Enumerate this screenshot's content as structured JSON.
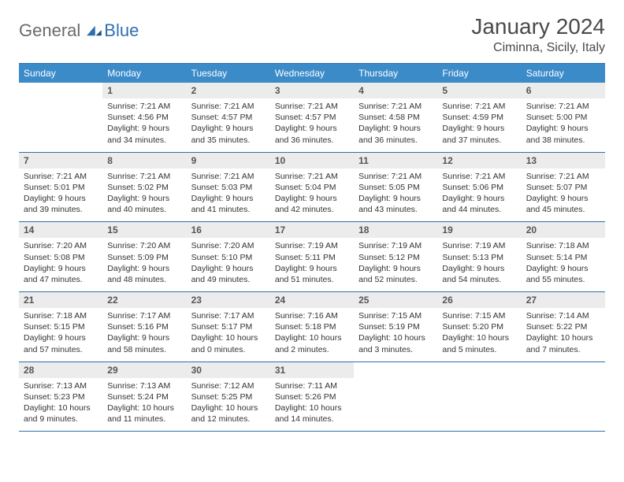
{
  "logo": {
    "text1": "General",
    "text2": "Blue"
  },
  "title": "January 2024",
  "location": "Ciminna, Sicily, Italy",
  "weekdays": [
    "Sunday",
    "Monday",
    "Tuesday",
    "Wednesday",
    "Thursday",
    "Friday",
    "Saturday"
  ],
  "colors": {
    "header_bg": "#3b8bc9",
    "header_border": "#2f6fb0",
    "daynum_bg": "#ececec"
  },
  "weeks": [
    [
      {
        "n": "",
        "sr": "",
        "ss": "",
        "dl": ""
      },
      {
        "n": "1",
        "sr": "Sunrise: 7:21 AM",
        "ss": "Sunset: 4:56 PM",
        "dl": "Daylight: 9 hours and 34 minutes."
      },
      {
        "n": "2",
        "sr": "Sunrise: 7:21 AM",
        "ss": "Sunset: 4:57 PM",
        "dl": "Daylight: 9 hours and 35 minutes."
      },
      {
        "n": "3",
        "sr": "Sunrise: 7:21 AM",
        "ss": "Sunset: 4:57 PM",
        "dl": "Daylight: 9 hours and 36 minutes."
      },
      {
        "n": "4",
        "sr": "Sunrise: 7:21 AM",
        "ss": "Sunset: 4:58 PM",
        "dl": "Daylight: 9 hours and 36 minutes."
      },
      {
        "n": "5",
        "sr": "Sunrise: 7:21 AM",
        "ss": "Sunset: 4:59 PM",
        "dl": "Daylight: 9 hours and 37 minutes."
      },
      {
        "n": "6",
        "sr": "Sunrise: 7:21 AM",
        "ss": "Sunset: 5:00 PM",
        "dl": "Daylight: 9 hours and 38 minutes."
      }
    ],
    [
      {
        "n": "7",
        "sr": "Sunrise: 7:21 AM",
        "ss": "Sunset: 5:01 PM",
        "dl": "Daylight: 9 hours and 39 minutes."
      },
      {
        "n": "8",
        "sr": "Sunrise: 7:21 AM",
        "ss": "Sunset: 5:02 PM",
        "dl": "Daylight: 9 hours and 40 minutes."
      },
      {
        "n": "9",
        "sr": "Sunrise: 7:21 AM",
        "ss": "Sunset: 5:03 PM",
        "dl": "Daylight: 9 hours and 41 minutes."
      },
      {
        "n": "10",
        "sr": "Sunrise: 7:21 AM",
        "ss": "Sunset: 5:04 PM",
        "dl": "Daylight: 9 hours and 42 minutes."
      },
      {
        "n": "11",
        "sr": "Sunrise: 7:21 AM",
        "ss": "Sunset: 5:05 PM",
        "dl": "Daylight: 9 hours and 43 minutes."
      },
      {
        "n": "12",
        "sr": "Sunrise: 7:21 AM",
        "ss": "Sunset: 5:06 PM",
        "dl": "Daylight: 9 hours and 44 minutes."
      },
      {
        "n": "13",
        "sr": "Sunrise: 7:21 AM",
        "ss": "Sunset: 5:07 PM",
        "dl": "Daylight: 9 hours and 45 minutes."
      }
    ],
    [
      {
        "n": "14",
        "sr": "Sunrise: 7:20 AM",
        "ss": "Sunset: 5:08 PM",
        "dl": "Daylight: 9 hours and 47 minutes."
      },
      {
        "n": "15",
        "sr": "Sunrise: 7:20 AM",
        "ss": "Sunset: 5:09 PM",
        "dl": "Daylight: 9 hours and 48 minutes."
      },
      {
        "n": "16",
        "sr": "Sunrise: 7:20 AM",
        "ss": "Sunset: 5:10 PM",
        "dl": "Daylight: 9 hours and 49 minutes."
      },
      {
        "n": "17",
        "sr": "Sunrise: 7:19 AM",
        "ss": "Sunset: 5:11 PM",
        "dl": "Daylight: 9 hours and 51 minutes."
      },
      {
        "n": "18",
        "sr": "Sunrise: 7:19 AM",
        "ss": "Sunset: 5:12 PM",
        "dl": "Daylight: 9 hours and 52 minutes."
      },
      {
        "n": "19",
        "sr": "Sunrise: 7:19 AM",
        "ss": "Sunset: 5:13 PM",
        "dl": "Daylight: 9 hours and 54 minutes."
      },
      {
        "n": "20",
        "sr": "Sunrise: 7:18 AM",
        "ss": "Sunset: 5:14 PM",
        "dl": "Daylight: 9 hours and 55 minutes."
      }
    ],
    [
      {
        "n": "21",
        "sr": "Sunrise: 7:18 AM",
        "ss": "Sunset: 5:15 PM",
        "dl": "Daylight: 9 hours and 57 minutes."
      },
      {
        "n": "22",
        "sr": "Sunrise: 7:17 AM",
        "ss": "Sunset: 5:16 PM",
        "dl": "Daylight: 9 hours and 58 minutes."
      },
      {
        "n": "23",
        "sr": "Sunrise: 7:17 AM",
        "ss": "Sunset: 5:17 PM",
        "dl": "Daylight: 10 hours and 0 minutes."
      },
      {
        "n": "24",
        "sr": "Sunrise: 7:16 AM",
        "ss": "Sunset: 5:18 PM",
        "dl": "Daylight: 10 hours and 2 minutes."
      },
      {
        "n": "25",
        "sr": "Sunrise: 7:15 AM",
        "ss": "Sunset: 5:19 PM",
        "dl": "Daylight: 10 hours and 3 minutes."
      },
      {
        "n": "26",
        "sr": "Sunrise: 7:15 AM",
        "ss": "Sunset: 5:20 PM",
        "dl": "Daylight: 10 hours and 5 minutes."
      },
      {
        "n": "27",
        "sr": "Sunrise: 7:14 AM",
        "ss": "Sunset: 5:22 PM",
        "dl": "Daylight: 10 hours and 7 minutes."
      }
    ],
    [
      {
        "n": "28",
        "sr": "Sunrise: 7:13 AM",
        "ss": "Sunset: 5:23 PM",
        "dl": "Daylight: 10 hours and 9 minutes."
      },
      {
        "n": "29",
        "sr": "Sunrise: 7:13 AM",
        "ss": "Sunset: 5:24 PM",
        "dl": "Daylight: 10 hours and 11 minutes."
      },
      {
        "n": "30",
        "sr": "Sunrise: 7:12 AM",
        "ss": "Sunset: 5:25 PM",
        "dl": "Daylight: 10 hours and 12 minutes."
      },
      {
        "n": "31",
        "sr": "Sunrise: 7:11 AM",
        "ss": "Sunset: 5:26 PM",
        "dl": "Daylight: 10 hours and 14 minutes."
      },
      {
        "n": "",
        "sr": "",
        "ss": "",
        "dl": ""
      },
      {
        "n": "",
        "sr": "",
        "ss": "",
        "dl": ""
      },
      {
        "n": "",
        "sr": "",
        "ss": "",
        "dl": ""
      }
    ]
  ]
}
